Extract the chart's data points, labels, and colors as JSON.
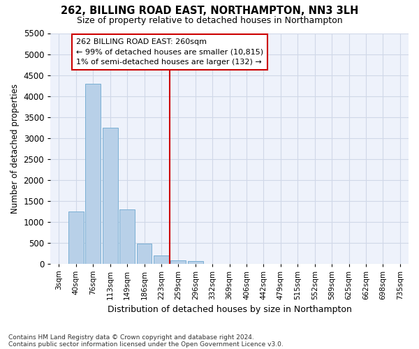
{
  "title_line1": "262, BILLING ROAD EAST, NORTHAMPTON, NN3 3LH",
  "title_line2": "Size of property relative to detached houses in Northampton",
  "xlabel": "Distribution of detached houses by size in Northampton",
  "ylabel": "Number of detached properties",
  "footer_line1": "Contains HM Land Registry data © Crown copyright and database right 2024.",
  "footer_line2": "Contains public sector information licensed under the Open Government Licence v3.0.",
  "bar_labels": [
    "3sqm",
    "40sqm",
    "76sqm",
    "113sqm",
    "149sqm",
    "186sqm",
    "223sqm",
    "259sqm",
    "296sqm",
    "332sqm",
    "369sqm",
    "406sqm",
    "442sqm",
    "479sqm",
    "515sqm",
    "552sqm",
    "589sqm",
    "625sqm",
    "662sqm",
    "698sqm",
    "735sqm"
  ],
  "bar_values": [
    0,
    1250,
    4300,
    3250,
    1300,
    480,
    200,
    80,
    60,
    0,
    0,
    0,
    0,
    0,
    0,
    0,
    0,
    0,
    0,
    0,
    0
  ],
  "bar_color": "#b8d0e8",
  "bar_edge_color": "#7aafd4",
  "highlight_bin_index": 7,
  "highlight_color": "#cc0000",
  "annotation_text": "262 BILLING ROAD EAST: 260sqm\n← 99% of detached houses are smaller (10,815)\n1% of semi-detached houses are larger (132) →",
  "annotation_box_color": "#ffffff",
  "annotation_border_color": "#cc0000",
  "ylim": [
    0,
    5500
  ],
  "yticks": [
    0,
    500,
    1000,
    1500,
    2000,
    2500,
    3000,
    3500,
    4000,
    4500,
    5000,
    5500
  ],
  "grid_color": "#d0d8e8",
  "bg_color": "#ffffff",
  "plot_bg_color": "#eef2fb"
}
